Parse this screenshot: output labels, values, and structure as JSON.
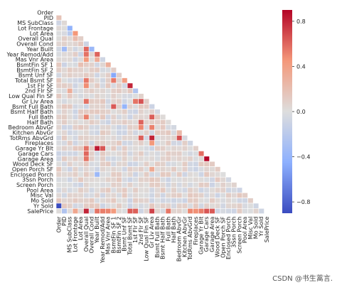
{
  "chart_data": {
    "type": "heatmap",
    "subtype": "lower-triangle correlation matrix",
    "labels": [
      "Order",
      "PID",
      "MS SubClass",
      "Lot Frontage",
      "Lot Area",
      "Overall Qual",
      "Overall Cond",
      "Year Built",
      "Year Remod/Add",
      "Mas Vnr Area",
      "BsmtFin SF 1",
      "BsmtFin SF 2",
      "Bsmt Unf SF",
      "Total Bsmt SF",
      "1st Flr SF",
      "2nd Flr SF",
      "Low Qual Fin SF",
      "Gr Liv Area",
      "Bsmt Full Bath",
      "Bsmt Half Bath",
      "Full Bath",
      "Half Bath",
      "Bedroom AbvGr",
      "Kitchen AbvGr",
      "TotRms AbvGrd",
      "Fireplaces",
      "Garage Yr Blt",
      "Garage Cars",
      "Garage Area",
      "Wood Deck SF",
      "Open Porch SF",
      "Enclosed Porch",
      "3Ssn Porch",
      "Screen Porch",
      "Pool Area",
      "Misc Val",
      "Mo Sold",
      "Yr Sold",
      "SalePrice"
    ],
    "colormap": {
      "name": "coolwarm",
      "low": "#3b4cc0",
      "mid": "#dddddd",
      "high": "#b40426"
    },
    "colorbar": {
      "min": -0.9,
      "max": 0.9,
      "ticks": [
        -0.8,
        -0.4,
        0.0,
        0.4,
        0.8
      ],
      "tick_labels": [
        "−0.8",
        "−0.4",
        "0.0",
        "0.4",
        "0.8"
      ]
    },
    "grid": true,
    "gridline_color": "#ffffff",
    "notable_correlations": [
      {
        "row": "PID",
        "col": "Order",
        "value": 0.17
      },
      {
        "row": "Lot Frontage",
        "col": "MS SubClass",
        "value": -0.42
      },
      {
        "row": "Lot Area",
        "col": "Lot Frontage",
        "value": 0.45
      },
      {
        "row": "Lot Area",
        "col": "MS SubClass",
        "value": -0.2
      },
      {
        "row": "Overall Qual",
        "col": "MS SubClass",
        "value": 0.04
      },
      {
        "row": "Overall Qual",
        "col": "Lot Frontage",
        "value": 0.22
      },
      {
        "row": "Overall Qual",
        "col": "Lot Area",
        "value": 0.1
      },
      {
        "row": "Overall Cond",
        "col": "Overall Qual",
        "value": -0.09
      },
      {
        "row": "Year Built",
        "col": "Overall Qual",
        "value": 0.6
      },
      {
        "row": "Year Built",
        "col": "Overall Cond",
        "value": -0.37
      },
      {
        "row": "Year Built",
        "col": "PID",
        "value": -0.34
      },
      {
        "row": "Year Remod/Add",
        "col": "Overall Qual",
        "value": 0.57
      },
      {
        "row": "Year Remod/Add",
        "col": "Year Built",
        "value": 0.61
      },
      {
        "row": "Mas Vnr Area",
        "col": "Overall Qual",
        "value": 0.43
      },
      {
        "row": "Mas Vnr Area",
        "col": "Year Built",
        "value": 0.31
      },
      {
        "row": "BsmtFin SF 1",
        "col": "Lot Area",
        "value": 0.19
      },
      {
        "row": "BsmtFin SF 1",
        "col": "Mas Vnr Area",
        "value": 0.3
      },
      {
        "row": "Bsmt Unf SF",
        "col": "BsmtFin SF 1",
        "value": -0.48
      },
      {
        "row": "Total Bsmt SF",
        "col": "Overall Qual",
        "value": 0.55
      },
      {
        "row": "Total Bsmt SF",
        "col": "BsmtFin SF 1",
        "value": 0.54
      },
      {
        "row": "Total Bsmt SF",
        "col": "Bsmt Unf SF",
        "value": 0.41
      },
      {
        "row": "1st Flr SF",
        "col": "Total Bsmt SF",
        "value": 0.8
      },
      {
        "row": "1st Flr SF",
        "col": "Overall Qual",
        "value": 0.48
      },
      {
        "row": "2nd Flr SF",
        "col": "MS SubClass",
        "value": 0.31
      },
      {
        "row": "2nd Flr SF",
        "col": "1st Flr SF",
        "value": -0.25
      },
      {
        "row": "Gr Liv Area",
        "col": "Overall Qual",
        "value": 0.57
      },
      {
        "row": "Gr Liv Area",
        "col": "2nd Flr SF",
        "value": 0.66
      },
      {
        "row": "Gr Liv Area",
        "col": "1st Flr SF",
        "value": 0.56
      },
      {
        "row": "Bsmt Full Bath",
        "col": "BsmtFin SF 1",
        "value": 0.64
      },
      {
        "row": "Bsmt Full Bath",
        "col": "Bsmt Unf SF",
        "value": -0.4
      },
      {
        "row": "Full Bath",
        "col": "Gr Liv Area",
        "value": 0.63
      },
      {
        "row": "Full Bath",
        "col": "Overall Qual",
        "value": 0.52
      },
      {
        "row": "Half Bath",
        "col": "2nd Flr SF",
        "value": 0.61
      },
      {
        "row": "Bedroom AbvGr",
        "col": "Gr Liv Area",
        "value": 0.52
      },
      {
        "row": "Bedroom AbvGr",
        "col": "2nd Flr SF",
        "value": 0.5
      },
      {
        "row": "Kitchen AbvGr",
        "col": "Bedroom AbvGr",
        "value": 0.24
      },
      {
        "row": "TotRms AbvGrd",
        "col": "Gr Liv Area",
        "value": 0.81
      },
      {
        "row": "TotRms AbvGrd",
        "col": "Bedroom AbvGr",
        "value": 0.67
      },
      {
        "row": "TotRms AbvGrd",
        "col": "2nd Flr SF",
        "value": 0.62
      },
      {
        "row": "Fireplaces",
        "col": "Gr Liv Area",
        "value": 0.45
      },
      {
        "row": "Garage Yr Blt",
        "col": "Year Built",
        "value": 0.83
      },
      {
        "row": "Garage Yr Blt",
        "col": "Year Remod/Add",
        "value": 0.65
      },
      {
        "row": "Garage Yr Blt",
        "col": "Overall Qual",
        "value": 0.57
      },
      {
        "row": "Garage Cars",
        "col": "Overall Qual",
        "value": 0.6
      },
      {
        "row": "Garage Cars",
        "col": "Garage Yr Blt",
        "value": 0.58
      },
      {
        "row": "Garage Area",
        "col": "Garage Cars",
        "value": 0.89
      },
      {
        "row": "Garage Area",
        "col": "Overall Qual",
        "value": 0.56
      },
      {
        "row": "Open Porch SF",
        "col": "Gr Liv Area",
        "value": 0.34
      },
      {
        "row": "Enclosed Porch",
        "col": "Year Built",
        "value": -0.37
      },
      {
        "row": "Yr Sold",
        "col": "Order",
        "value": -0.98
      },
      {
        "row": "SalePrice",
        "col": "Overall Qual",
        "value": 0.8
      },
      {
        "row": "SalePrice",
        "col": "Gr Liv Area",
        "value": 0.71
      },
      {
        "row": "SalePrice",
        "col": "Garage Cars",
        "value": 0.65
      },
      {
        "row": "SalePrice",
        "col": "Garage Area",
        "value": 0.64
      },
      {
        "row": "SalePrice",
        "col": "Total Bsmt SF",
        "value": 0.63
      },
      {
        "row": "SalePrice",
        "col": "1st Flr SF",
        "value": 0.62
      },
      {
        "row": "SalePrice",
        "col": "Year Built",
        "value": 0.56
      },
      {
        "row": "SalePrice",
        "col": "Full Bath",
        "value": 0.55
      },
      {
        "row": "SalePrice",
        "col": "Year Remod/Add",
        "value": 0.53
      },
      {
        "row": "SalePrice",
        "col": "Garage Yr Blt",
        "value": 0.53
      },
      {
        "row": "SalePrice",
        "col": "Mas Vnr Area",
        "value": 0.51
      },
      {
        "row": "SalePrice",
        "col": "TotRms AbvGrd",
        "value": 0.5
      },
      {
        "row": "SalePrice",
        "col": "Fireplaces",
        "value": 0.47
      },
      {
        "row": "SalePrice",
        "col": "BsmtFin SF 1",
        "value": 0.43
      },
      {
        "row": "SalePrice",
        "col": "Lot Frontage",
        "value": 0.36
      },
      {
        "row": "SalePrice",
        "col": "PID",
        "value": -0.25
      }
    ],
    "title": "",
    "xlabel": "",
    "ylabel": ""
  },
  "watermark": "CSDN @书生蒿言."
}
